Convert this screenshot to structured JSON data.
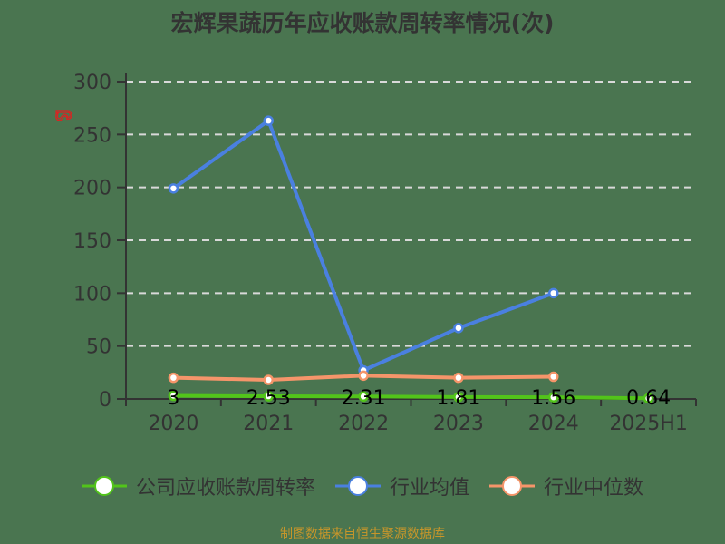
{
  "title": "宏辉果蔬历年应收账款周转率情况(次)",
  "source": "制图数据来自恒生聚源数据库",
  "colors": {
    "background": "#4a7550",
    "company": "#52c41a",
    "industry_avg": "#4a80e0",
    "industry_median": "#f5956a",
    "axis": "#333333",
    "grid": "#d9d9d9",
    "source": "#c8962a"
  },
  "legend": [
    {
      "label": "公司应收账款周转率",
      "color": "#52c41a"
    },
    {
      "label": "行业均值",
      "color": "#4a80e0"
    },
    {
      "label": "行业中位数",
      "color": "#f5956a"
    }
  ],
  "chart_data": {
    "type": "line",
    "title": "宏辉果蔬历年应收账款周转率情况(次)",
    "xlabel": "",
    "ylabel": "",
    "categories": [
      "2020",
      "2021",
      "2022",
      "2023",
      "2024",
      "2025H1"
    ],
    "y_ticks": [
      0,
      50,
      100,
      150,
      200,
      250,
      300
    ],
    "ylim": [
      0,
      300
    ],
    "grid": "horizontal dashed",
    "legend_position": "bottom",
    "series": [
      {
        "name": "公司应收账款周转率",
        "values": [
          3,
          2.53,
          2.31,
          1.81,
          1.56,
          0.64
        ],
        "labels": [
          "3",
          "2.53",
          "2.31",
          "1.81",
          "1.56",
          "0.64"
        ]
      },
      {
        "name": "行业均值",
        "values": [
          199,
          263,
          27,
          67,
          100,
          null
        ]
      },
      {
        "name": "行业中位数",
        "values": [
          20,
          18,
          22,
          20,
          21,
          null
        ]
      }
    ]
  }
}
